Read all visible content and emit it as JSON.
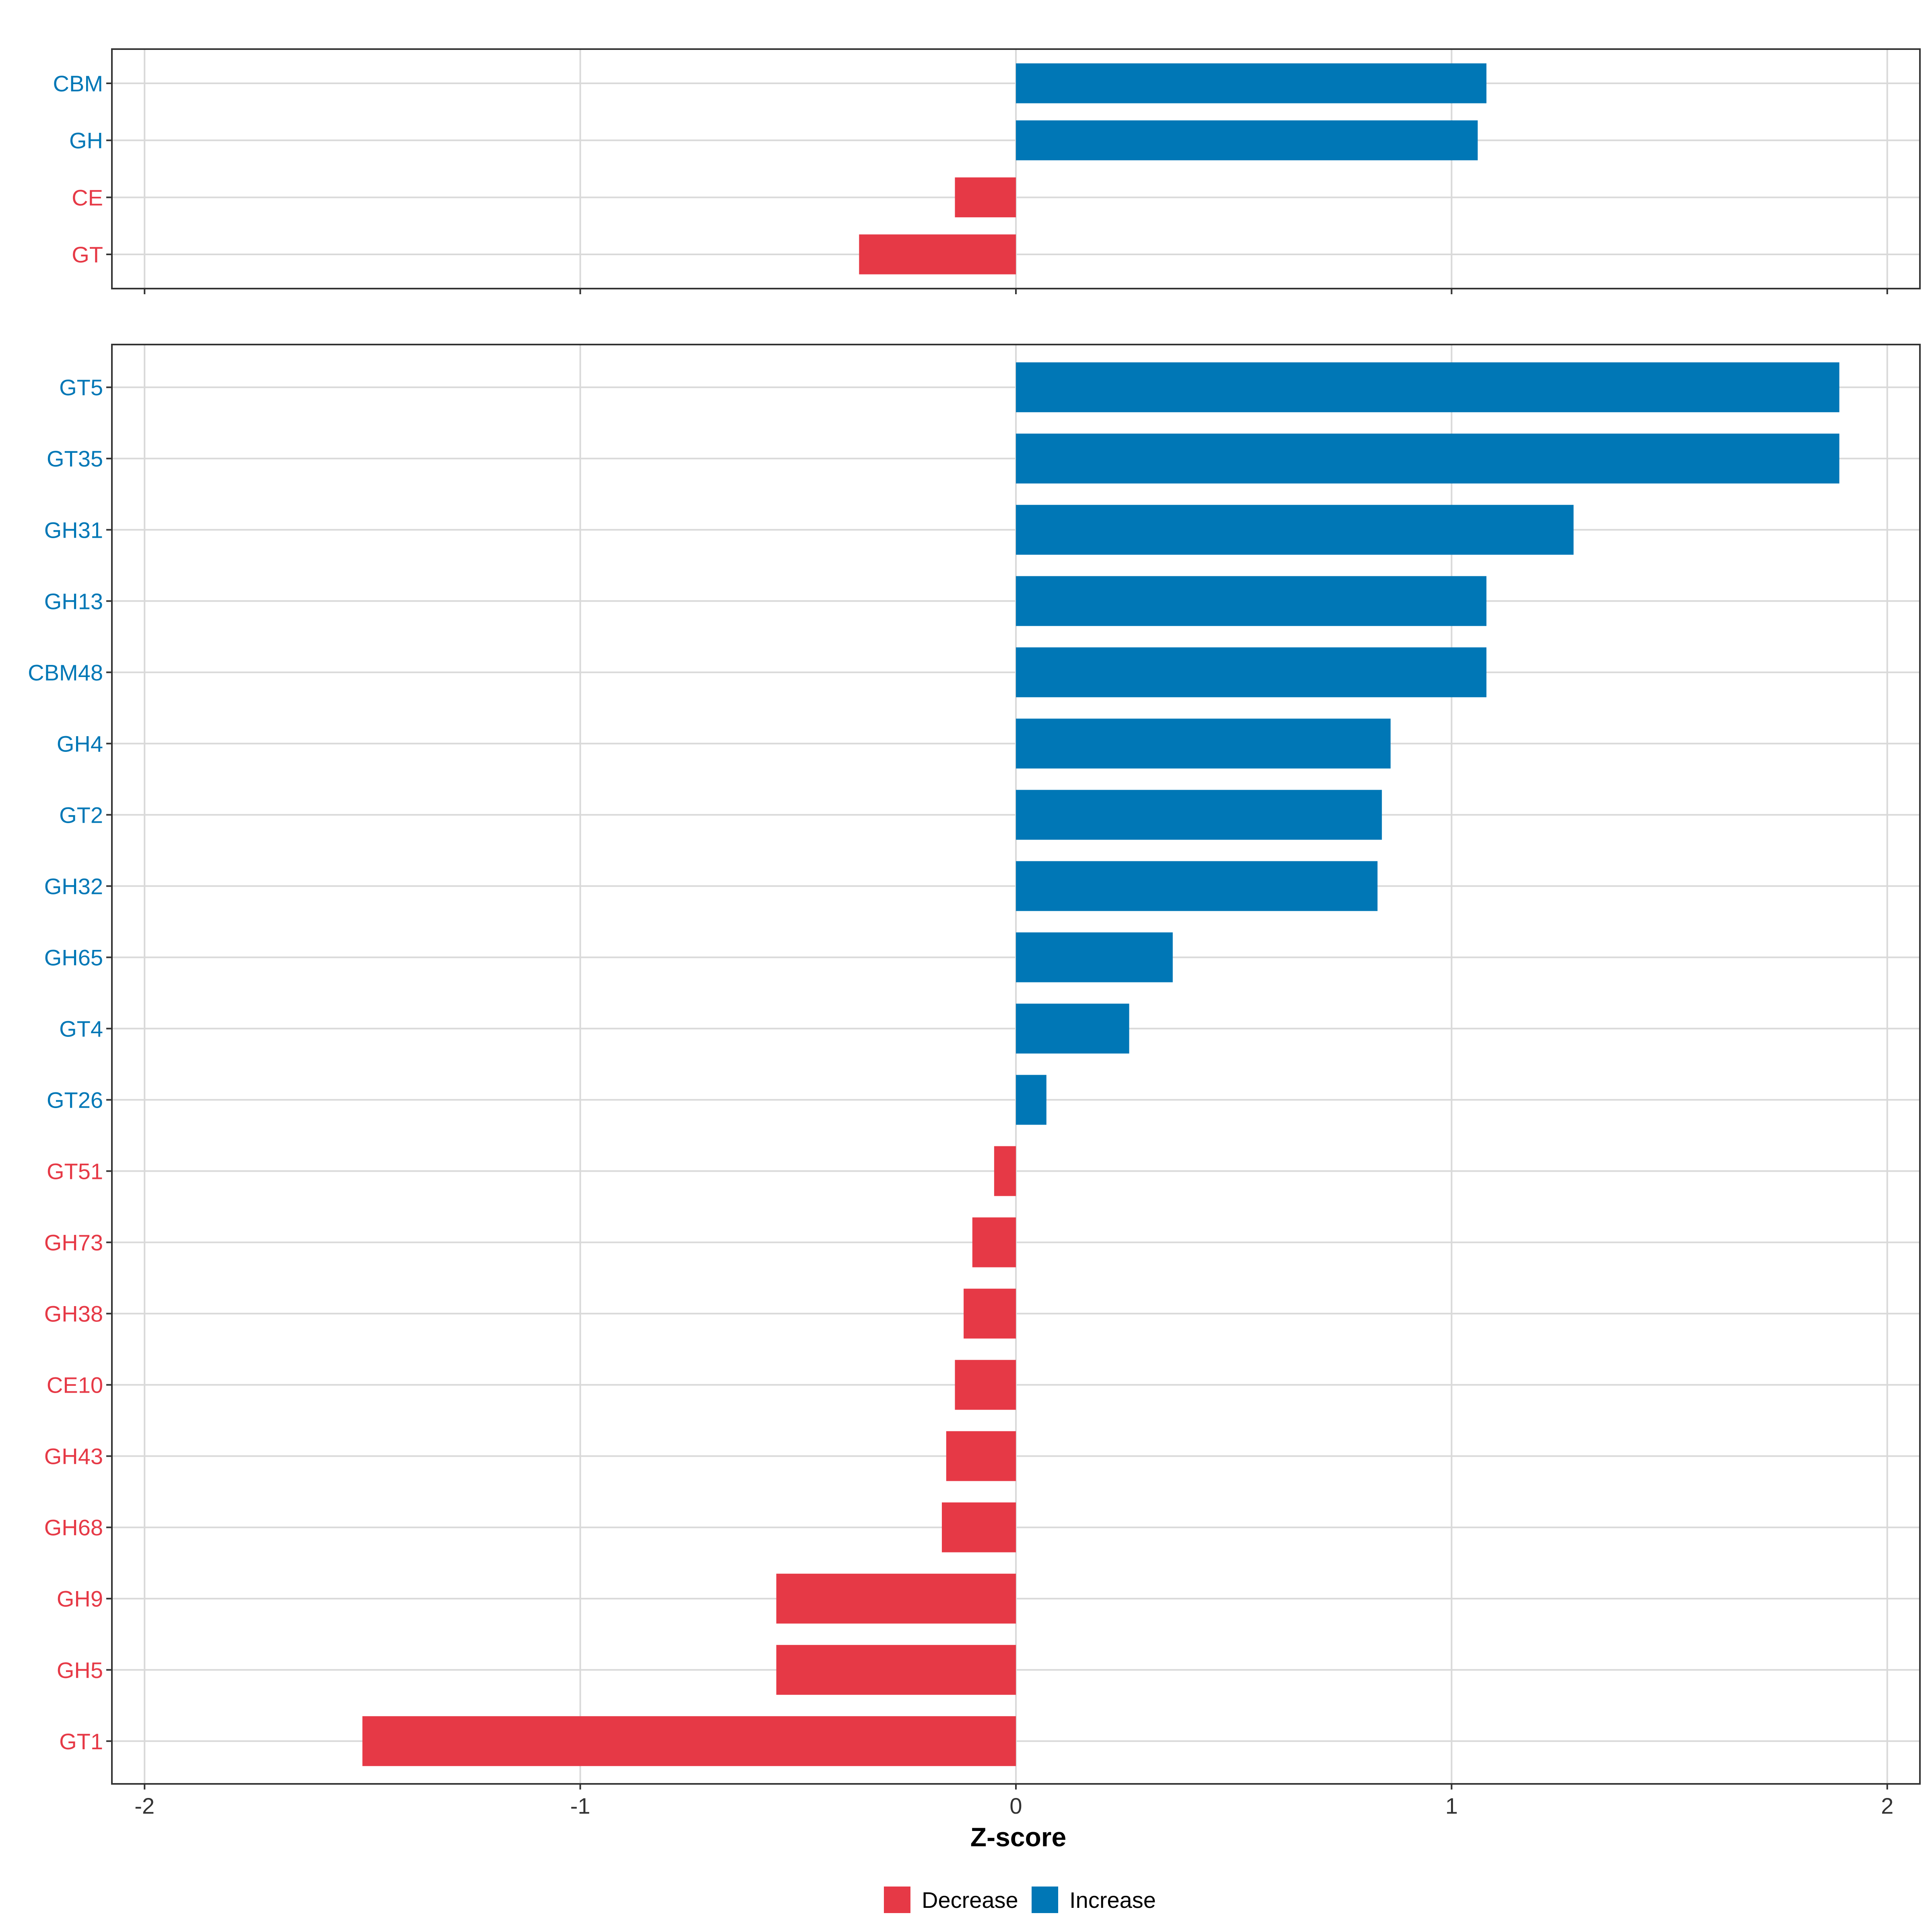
{
  "colors": {
    "decrease": "#e63946",
    "increase": "#0077b6"
  },
  "chart_data": [
    {
      "type": "bar",
      "orientation": "horizontal",
      "panel": "top",
      "categories": [
        "CBM",
        "GH",
        "CE",
        "GT"
      ],
      "values": [
        1.08,
        1.06,
        -0.14,
        -0.36
      ],
      "groups": [
        "Increase",
        "Increase",
        "Decrease",
        "Decrease"
      ],
      "xlim": [
        -2.075,
        2.075
      ],
      "xticks": [
        -2,
        -1,
        0,
        1,
        2
      ],
      "grid": true
    },
    {
      "type": "bar",
      "orientation": "horizontal",
      "panel": "bottom",
      "categories": [
        "GT5",
        "GT35",
        "GH31",
        "GH13",
        "CBM48",
        "GH4",
        "GT2",
        "GH32",
        "GH65",
        "GT4",
        "GT26",
        "GT51",
        "GH73",
        "GH38",
        "CE10",
        "GH43",
        "GH68",
        "GH9",
        "GH5",
        "GT1"
      ],
      "values": [
        1.89,
        1.89,
        1.28,
        1.08,
        1.08,
        0.86,
        0.84,
        0.83,
        0.36,
        0.26,
        0.07,
        -0.05,
        -0.1,
        -0.12,
        -0.14,
        -0.16,
        -0.17,
        -0.55,
        -0.55,
        -1.5
      ],
      "groups": [
        "Increase",
        "Increase",
        "Increase",
        "Increase",
        "Increase",
        "Increase",
        "Increase",
        "Increase",
        "Increase",
        "Increase",
        "Increase",
        "Decrease",
        "Decrease",
        "Decrease",
        "Decrease",
        "Decrease",
        "Decrease",
        "Decrease",
        "Decrease",
        "Decrease"
      ],
      "xlim": [
        -2.075,
        2.075
      ],
      "xticks": [
        -2,
        -1,
        0,
        1,
        2
      ],
      "xtick_labels": [
        "-2",
        "-1",
        "0",
        "1",
        "2"
      ],
      "xlabel": "Z-score",
      "grid": true
    }
  ],
  "legend": {
    "position": "bottom",
    "entries": [
      {
        "label": "Decrease",
        "color": "#e63946"
      },
      {
        "label": "Increase",
        "color": "#0077b6"
      }
    ]
  }
}
